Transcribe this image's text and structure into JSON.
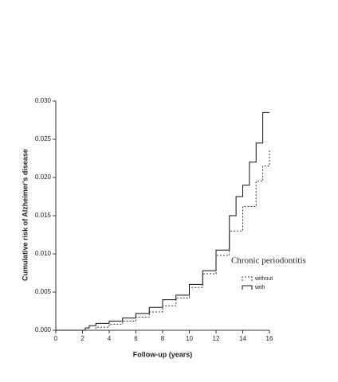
{
  "chart_data": {
    "type": "line",
    "step": true,
    "xlabel": "Follow-up (years)",
    "ylabel": "Cumulative risk of Alzheimer's disease",
    "legend_title": "Chronic periodontitis",
    "legend_position": "right",
    "xlim": [
      0,
      16
    ],
    "xticks": [
      0,
      2,
      4,
      6,
      8,
      10,
      12,
      14,
      16
    ],
    "ylim": [
      0,
      0.03
    ],
    "yticks": [
      {
        "value": 0,
        "label": "0.000"
      },
      {
        "value": 0.005,
        "label": "0.005"
      },
      {
        "value": 0.01,
        "label": "0.010"
      },
      {
        "value": 0.015,
        "label": "0.015"
      },
      {
        "value": 0.02,
        "label": "0.020"
      },
      {
        "value": 0.025,
        "label": "0.025"
      },
      {
        "value": 0.03,
        "label": "0.030"
      }
    ],
    "series": [
      {
        "name": "without",
        "color": "#333333",
        "line_style": "dotted",
        "x": [
          0,
          2,
          3,
          4,
          5,
          6,
          7,
          8,
          9,
          10,
          11,
          12,
          13,
          14,
          15,
          15.5,
          16
        ],
        "values": [
          0,
          0,
          0.0004,
          0.0008,
          0.0012,
          0.0017,
          0.0024,
          0.0032,
          0.0042,
          0.0056,
          0.0074,
          0.0098,
          0.013,
          0.0162,
          0.0195,
          0.0215,
          0.0237
        ]
      },
      {
        "name": "with",
        "color": "#111111",
        "line_style": "solid",
        "x": [
          0,
          2,
          2.2,
          2.5,
          3,
          4,
          5,
          6,
          7,
          8,
          9,
          10,
          11,
          12,
          13,
          13.5,
          14,
          14.5,
          15,
          15.5,
          16
        ],
        "values": [
          0,
          0,
          0.0003,
          0.0006,
          0.0009,
          0.0012,
          0.0016,
          0.0022,
          0.003,
          0.004,
          0.0046,
          0.006,
          0.0078,
          0.0105,
          0.015,
          0.0175,
          0.019,
          0.022,
          0.0245,
          0.0285,
          0.0285
        ]
      }
    ]
  }
}
